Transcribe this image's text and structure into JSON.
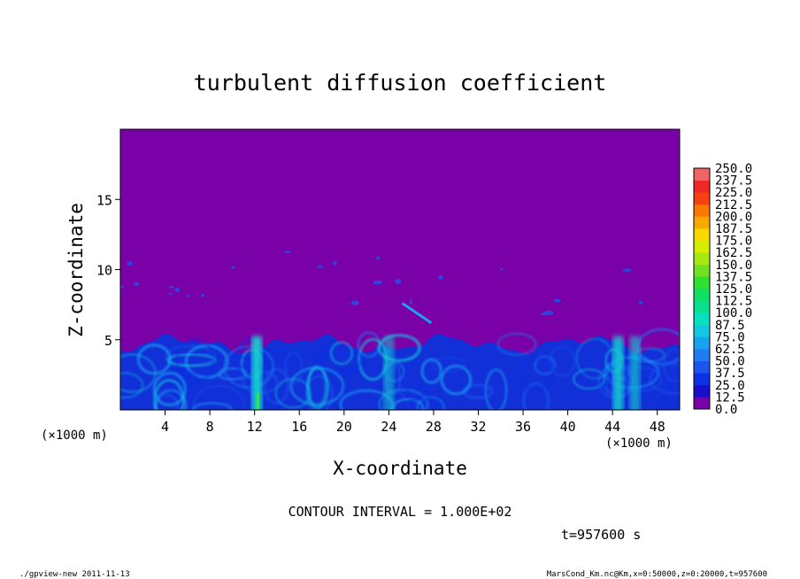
{
  "chart_data": {
    "type": "heatmap",
    "title": "turbulent diffusion coefficient",
    "xlabel": "X-coordinate",
    "ylabel": "Z-coordinate",
    "x_unit": "(×1000 m)",
    "y_unit": "(×1000 m)",
    "xlim": [
      0,
      50
    ],
    "ylim": [
      0,
      20
    ],
    "x_ticks": [
      4,
      8,
      12,
      16,
      20,
      24,
      28,
      32,
      36,
      40,
      44,
      48
    ],
    "y_ticks": [
      5,
      10,
      15
    ],
    "colorbar": {
      "levels": [
        "0.0",
        "12.5",
        "25.0",
        "37.5",
        "50.0",
        "62.5",
        "75.0",
        "87.5",
        "100.0",
        "112.5",
        "125.0",
        "137.5",
        "150.0",
        "162.5",
        "175.0",
        "187.5",
        "200.0",
        "212.5",
        "225.0",
        "237.5",
        "250.0"
      ],
      "colors": [
        "#7a00a8",
        "#1a0fc8",
        "#0b30e6",
        "#1a56ee",
        "#1f7cf2",
        "#1aa2f0",
        "#12c8e0",
        "#08e0c0",
        "#08e090",
        "#10e060",
        "#30e030",
        "#70e020",
        "#a8e810",
        "#d8ec00",
        "#f8d800",
        "#f8a800",
        "#f87800",
        "#f84010",
        "#f02828",
        "#f06464"
      ]
    },
    "background_value_color": "#7a00a8",
    "layer_top_km": 5.5,
    "contour_interval_label": "CONTOUR INTERVAL = 1.000E+02",
    "time_label": "t=957600 s",
    "footer_left": "./gpview-new   2011-11-13",
    "footer_right": "MarsCond_Km.nc@Km,x=0:50000,z=0:20000,t=957600"
  }
}
